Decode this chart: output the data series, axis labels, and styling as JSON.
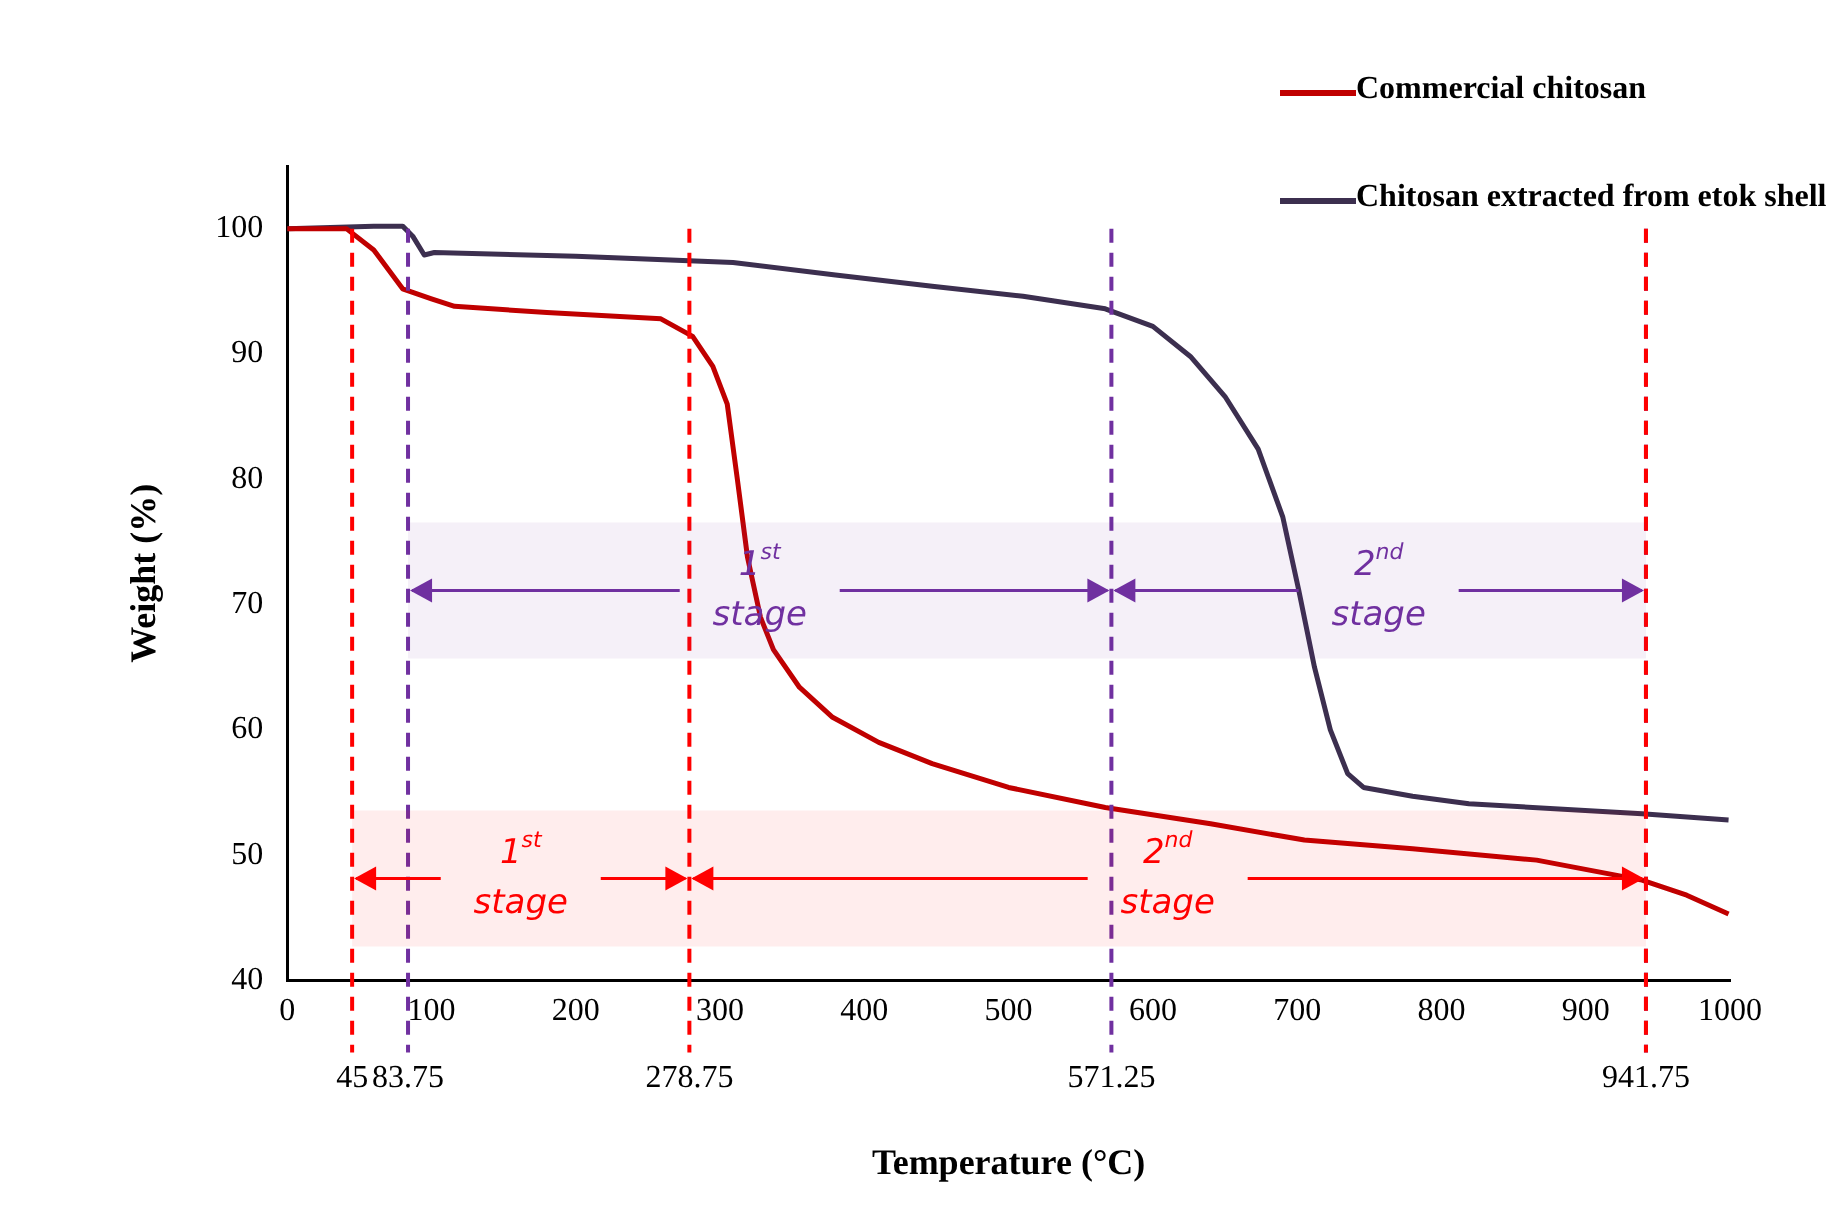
{
  "chart_data": {
    "type": "line",
    "xlabel": "Temperature (°C)",
    "ylabel": "Weight (%)",
    "xlim": [
      0,
      1000
    ],
    "ylim": [
      40,
      105
    ],
    "xticks": [
      0,
      100,
      200,
      300,
      400,
      500,
      600,
      700,
      800,
      900,
      1000
    ],
    "yticks": [
      40,
      50,
      60,
      70,
      80,
      90,
      100
    ],
    "grid": false,
    "legend": "top right",
    "marker": "none",
    "line_style": "solid",
    "series": [
      {
        "name": "Commercial chitosan",
        "color": "#c00000",
        "x": [
          0,
          41,
          60,
          80,
          100,
          116,
          180,
          259,
          281,
          295,
          305,
          312,
          319,
          328,
          337,
          355,
          378,
          410,
          447,
          500,
          567,
          640,
          705,
          780,
          866,
          939,
          970,
          999
        ],
        "values": [
          100,
          100,
          98.3,
          95.2,
          94.4,
          93.8,
          93.3,
          92.8,
          91.4,
          89,
          86,
          80,
          73.8,
          69,
          66.4,
          63.4,
          61,
          59,
          57.3,
          55.4,
          53.8,
          52.5,
          51.2,
          50.5,
          49.6,
          48,
          46.8,
          45.3
        ]
      },
      {
        "name": "Chitosan extracted from etok shell",
        "color": "#3c2f4f",
        "x": [
          0,
          60,
          80,
          87,
          95,
          102,
          200,
          309,
          380,
          447,
          510,
          567,
          600,
          626,
          650,
          673,
          690,
          701,
          712,
          723,
          735,
          746,
          780,
          819,
          939,
          999
        ],
        "values": [
          100,
          100.2,
          100.2,
          99.4,
          97.9,
          98.1,
          97.8,
          97.3,
          96.3,
          95.4,
          94.6,
          93.6,
          92.2,
          89.8,
          86.6,
          82.4,
          77,
          71.2,
          65,
          60,
          56.5,
          55.4,
          54.7,
          54.1,
          53.3,
          52.8
        ]
      }
    ],
    "ref_lines": [
      {
        "axis": "x",
        "value": 45,
        "label": "45",
        "color": "#ff0000",
        "line_style": "dashed"
      },
      {
        "axis": "x",
        "value": 83.75,
        "label": "83.75",
        "color": "#7030a0",
        "line_style": "dashed"
      },
      {
        "axis": "x",
        "value": 278.75,
        "label": "278.75",
        "color": "#ff0000",
        "line_style": "dashed"
      },
      {
        "axis": "x",
        "value": 571.25,
        "label": "571.25",
        "color": "#7030a0",
        "line_style": "dashed"
      },
      {
        "axis": "x",
        "value": 941.75,
        "label": "941.75",
        "color": "#7030a0",
        "line_style": "dashed"
      },
      {
        "axis": "x",
        "value": 941.75,
        "color": "#ff0000",
        "line_style": "dashed"
      }
    ],
    "bands": [
      {
        "axis": "x",
        "from": 45,
        "to": 278.75,
        "label": "1$^{st}$ stage",
        "color": "#ff0000"
      },
      {
        "axis": "x",
        "from": 278.75,
        "to": 941.75,
        "label": "2$^{nd}$ stage",
        "color": "#ff0000"
      },
      {
        "axis": "x",
        "from": 83.75,
        "to": 571.25,
        "label": "1$^{st}$ stage",
        "color": "#7030a0"
      },
      {
        "axis": "x",
        "from": 571.25,
        "to": 941.75,
        "label": "2$^{nd}$ stage",
        "color": "#7030a0"
      }
    ]
  }
}
